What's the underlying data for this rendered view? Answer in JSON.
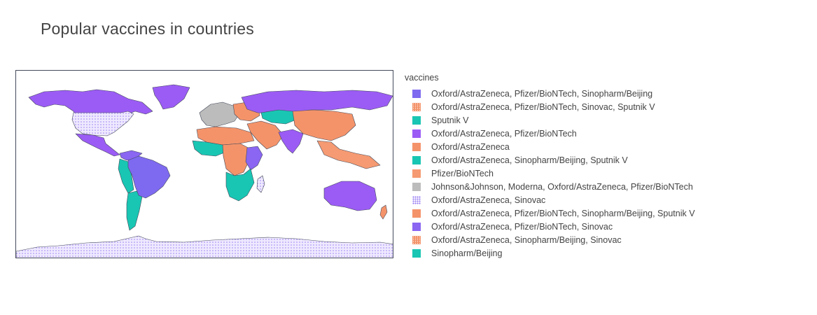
{
  "chart_data": {
    "type": "choropleth",
    "title": "Popular vaccines in countries",
    "legend": {
      "title": "vaccines",
      "placement": "right",
      "entries": [
        {
          "label": "Oxford/AstraZeneca, Pfizer/BioNTech, Sinopharm/Beijing",
          "color": "#7e6af0",
          "pattern": "solid"
        },
        {
          "label": "Oxford/AstraZeneca, Pfizer/BioNTech, Sinovac, Sputnik V",
          "color": "#f4936a",
          "pattern": "dots"
        },
        {
          "label": "Sputnik V",
          "color": "#19c6b3",
          "pattern": "solid"
        },
        {
          "label": "Oxford/AstraZeneca, Pfizer/BioNTech",
          "color": "#9b5cf5",
          "pattern": "solid"
        },
        {
          "label": "Oxford/AstraZeneca",
          "color": "#f4936a",
          "pattern": "solid"
        },
        {
          "label": "Oxford/AstraZeneca, Sinopharm/Beijing, Sputnik V",
          "color": "#19c6b3",
          "pattern": "solid"
        },
        {
          "label": "Pfizer/BioNTech",
          "color": "#f59a72",
          "pattern": "solid"
        },
        {
          "label": "Johnson&Johnson, Moderna, Oxford/AstraZeneca, Pfizer/BioNTech",
          "color": "#bcbcbc",
          "pattern": "solid"
        },
        {
          "label": "Oxford/AstraZeneca, Sinovac",
          "color": "#c9b8f7",
          "pattern": "dots-light"
        },
        {
          "label": "Oxford/AstraZeneca, Pfizer/BioNTech, Sinopharm/Beijing, Sputnik V",
          "color": "#f4936a",
          "pattern": "solid"
        },
        {
          "label": "Oxford/AstraZeneca, Pfizer/BioNTech, Sinovac",
          "color": "#8a66f2",
          "pattern": "solid"
        },
        {
          "label": "Oxford/AstraZeneca, Sinopharm/Beijing, Sinovac",
          "color": "#f4936a",
          "pattern": "dots"
        },
        {
          "label": "Sinopharm/Beijing",
          "color": "#19c6b3",
          "pattern": "solid"
        }
      ]
    },
    "regions": [
      {
        "region": "North America",
        "category_index": 3
      },
      {
        "region": "United States",
        "category_index": 8
      },
      {
        "region": "Greenland",
        "category_index": 3
      },
      {
        "region": "Mexico and Central America",
        "category_index": 3
      },
      {
        "region": "South America (north)",
        "category_index": 10
      },
      {
        "region": "South America (west)",
        "category_index": 2
      },
      {
        "region": "South America (south)",
        "category_index": 5
      },
      {
        "region": "Brazil",
        "category_index": 0
      },
      {
        "region": "Western Europe",
        "category_index": 7
      },
      {
        "region": "Eastern Europe",
        "category_index": 9
      },
      {
        "region": "Russia and Central Asia",
        "category_index": 3
      },
      {
        "region": "Kazakhstan",
        "category_index": 2
      },
      {
        "region": "Middle East",
        "category_index": 4
      },
      {
        "region": "India",
        "category_index": 3
      },
      {
        "region": "China and East Asia",
        "category_index": 4
      },
      {
        "region": "Southeast Asia",
        "category_index": 6
      },
      {
        "region": "North Africa",
        "category_index": 4
      },
      {
        "region": "West Africa",
        "category_index": 5
      },
      {
        "region": "Central Africa",
        "category_index": 4
      },
      {
        "region": "East Africa",
        "category_index": 10
      },
      {
        "region": "Southern Africa",
        "category_index": 2
      },
      {
        "region": "Madagascar",
        "category_index": 8
      },
      {
        "region": "Australia",
        "category_index": 3
      },
      {
        "region": "New Zealand",
        "category_index": 4
      },
      {
        "region": "Antarctica",
        "category_index": 8
      }
    ]
  }
}
